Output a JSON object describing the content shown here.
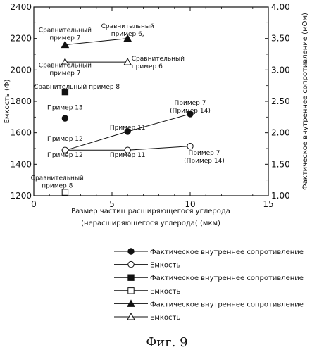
{
  "chart_data": {
    "type": "scatter",
    "xlabel_lines": [
      "Размер частиц расширяющегося углерода",
      "(нерасширяющегося углерода( (мкм)"
    ],
    "ylabel_left": "Емкость (Ф)",
    "ylabel_right": "Фактическое внутреннее сопротивление (мОм)",
    "xlim": [
      0,
      15
    ],
    "ylim_left": [
      1200,
      2400
    ],
    "ylim_right": [
      1.0,
      4.0
    ],
    "x_ticks": [
      "0",
      "5",
      "10",
      "15"
    ],
    "y_left_ticks": [
      "1200",
      "1400",
      "1600",
      "1800",
      "2000",
      "2200",
      "2400"
    ],
    "y_right_ticks": [
      "1.00",
      "1.50",
      "2.00",
      "2.50",
      "3.00",
      "3.50",
      "4.00"
    ],
    "grid": false,
    "legend_position": "below",
    "series": [
      {
        "marker": "filled-circle",
        "name": "Фактическое внутреннее сопротивление",
        "axis": "right",
        "x": [
          2,
          6,
          10
        ],
        "y": [
          1.72,
          2.02,
          2.3
        ]
      },
      {
        "marker": "open-circle",
        "name": "Емкость",
        "axis": "left",
        "x": [
          2,
          6,
          10
        ],
        "y": [
          1490,
          1490,
          1515
        ]
      },
      {
        "marker": "filled-square",
        "name": "Фактическое внутреннее сопротивление",
        "axis": "right",
        "x": [
          2
        ],
        "y": [
          2.65
        ]
      },
      {
        "marker": "open-square",
        "name": "Емкость",
        "axis": "left",
        "x": [
          2
        ],
        "y": [
          1222
        ]
      },
      {
        "marker": "filled-triangle",
        "name": "Фактическое внутреннее сопротивление",
        "axis": "right",
        "x": [
          2,
          6
        ],
        "y": [
          3.4,
          3.5
        ]
      },
      {
        "marker": "open-triangle",
        "name": "Емкость",
        "axis": "left",
        "x": [
          2,
          6
        ],
        "y": [
          2050,
          2050
        ]
      },
      {
        "marker": "filled-circle",
        "name": "",
        "axis": "right",
        "x": [
          2
        ],
        "y": [
          2.23
        ],
        "no_line": true
      }
    ],
    "annotations": [
      {
        "lines": [
          "Сравнительный",
          "пример 7"
        ],
        "x": 2,
        "y": 2240,
        "anchor": "middle"
      },
      {
        "lines": [
          "Сравнительный",
          "пример 6,"
        ],
        "x": 6,
        "y": 2265,
        "anchor": "middle"
      },
      {
        "lines": [
          "Сравнительный",
          "пример 7"
        ],
        "x": 2,
        "y": 2018,
        "anchor": "middle"
      },
      {
        "lines": [
          "Сравнительный",
          "пример 6"
        ],
        "x": 6.25,
        "y": 2060,
        "anchor": "start"
      },
      {
        "lines": [
          "Сравнительный  пример 8"
        ],
        "x": 0,
        "y": 1880,
        "anchor": "start"
      },
      {
        "lines": [
          "Пример 13"
        ],
        "x": 2,
        "y": 1748,
        "anchor": "middle"
      },
      {
        "lines": [
          "Пример 11"
        ],
        "x": 6,
        "y": 1620,
        "anchor": "middle"
      },
      {
        "lines": [
          "Пример 7",
          "(Пример 14)"
        ],
        "x": 10,
        "y": 1778,
        "anchor": "middle"
      },
      {
        "lines": [
          "Пример 12"
        ],
        "x": 2,
        "y": 1550,
        "anchor": "middle"
      },
      {
        "lines": [
          "Пример 12"
        ],
        "x": 2,
        "y": 1447,
        "anchor": "middle"
      },
      {
        "lines": [
          "Пример 11"
        ],
        "x": 6,
        "y": 1447,
        "anchor": "middle"
      },
      {
        "lines": [
          "Пример 7",
          "(Пример 14)"
        ],
        "x": 10.9,
        "y": 1460,
        "anchor": "middle"
      },
      {
        "lines": [
          "Сравнительный",
          "пример 8"
        ],
        "x": 1.5,
        "y": 1300,
        "anchor": "middle"
      }
    ]
  },
  "legend": [
    {
      "marker": "filled-circle",
      "label": "Фактическое внутреннее сопротивление"
    },
    {
      "marker": "open-circle",
      "label": "Емкость"
    },
    {
      "marker": "filled-square",
      "label": "Фактическое внутреннее сопротивление"
    },
    {
      "marker": "open-square",
      "label": "Емкость"
    },
    {
      "marker": "filled-triangle",
      "label": "Фактическое внутреннее сопротивление"
    },
    {
      "marker": "open-triangle",
      "label": "Емкость"
    }
  ],
  "caption": "Фиг. 9"
}
